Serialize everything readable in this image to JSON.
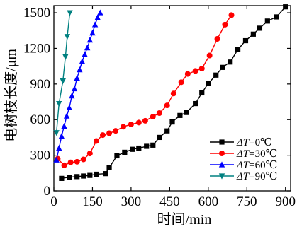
{
  "chart_data": {
    "type": "line",
    "xlabel": "时间/min",
    "ylabel": "电树枝长度/μm",
    "xlim": [
      0,
      920
    ],
    "ylim": [
      0,
      1560
    ],
    "xticks": [
      0,
      150,
      300,
      450,
      600,
      750,
      900
    ],
    "yticks": [
      0,
      300,
      600,
      900,
      1200,
      1500
    ],
    "legend_position": "bottom-right",
    "grid": false,
    "series": [
      {
        "name": "ΔT=0℃",
        "prefix": "ΔT",
        "suffix": "=0℃",
        "color": "#000000",
        "marker": "square",
        "points": [
          [
            30,
            105
          ],
          [
            60,
            115
          ],
          [
            90,
            120
          ],
          [
            115,
            125
          ],
          [
            140,
            130
          ],
          [
            165,
            140
          ],
          [
            200,
            145
          ],
          [
            215,
            195
          ],
          [
            245,
            295
          ],
          [
            275,
            325
          ],
          [
            305,
            350
          ],
          [
            330,
            360
          ],
          [
            360,
            375
          ],
          [
            385,
            385
          ],
          [
            410,
            450
          ],
          [
            440,
            505
          ],
          [
            460,
            580
          ],
          [
            490,
            635
          ],
          [
            515,
            660
          ],
          [
            550,
            735
          ],
          [
            575,
            825
          ],
          [
            600,
            905
          ],
          [
            630,
            975
          ],
          [
            655,
            1040
          ],
          [
            685,
            1085
          ],
          [
            715,
            1190
          ],
          [
            745,
            1265
          ],
          [
            775,
            1320
          ],
          [
            800,
            1370
          ],
          [
            830,
            1430
          ],
          [
            865,
            1465
          ],
          [
            900,
            1550
          ]
        ]
      },
      {
        "name": "ΔT=30℃",
        "prefix": "ΔT",
        "suffix": "=30℃",
        "color": "#ff0000",
        "marker": "circle",
        "points": [
          [
            15,
            270
          ],
          [
            40,
            215
          ],
          [
            65,
            240
          ],
          [
            90,
            245
          ],
          [
            115,
            265
          ],
          [
            140,
            315
          ],
          [
            165,
            420
          ],
          [
            190,
            470
          ],
          [
            215,
            485
          ],
          [
            240,
            505
          ],
          [
            270,
            540
          ],
          [
            300,
            560
          ],
          [
            330,
            575
          ],
          [
            355,
            590
          ],
          [
            385,
            625
          ],
          [
            410,
            655
          ],
          [
            440,
            720
          ],
          [
            465,
            820
          ],
          [
            495,
            915
          ],
          [
            520,
            985
          ],
          [
            550,
            1010
          ],
          [
            575,
            1030
          ],
          [
            605,
            1140
          ],
          [
            635,
            1280
          ],
          [
            665,
            1400
          ],
          [
            690,
            1480
          ]
        ]
      },
      {
        "name": "ΔT=60℃",
        "prefix": "ΔT",
        "suffix": "=60℃",
        "color": "#0000ff",
        "marker": "triangle-up",
        "points": [
          [
            10,
            260
          ],
          [
            20,
            360
          ],
          [
            30,
            460
          ],
          [
            40,
            545
          ],
          [
            50,
            630
          ],
          [
            60,
            700
          ],
          [
            70,
            800
          ],
          [
            80,
            860
          ],
          [
            90,
            950
          ],
          [
            100,
            1020
          ],
          [
            110,
            1090
          ],
          [
            120,
            1150
          ],
          [
            130,
            1205
          ],
          [
            140,
            1270
          ],
          [
            150,
            1330
          ],
          [
            160,
            1400
          ],
          [
            170,
            1460
          ],
          [
            180,
            1500
          ]
        ]
      },
      {
        "name": "ΔT=90℃",
        "prefix": "ΔT",
        "suffix": "=90℃",
        "color": "#008080",
        "marker": "triangle-down",
        "points": [
          [
            10,
            490
          ],
          [
            20,
            735
          ],
          [
            35,
            925
          ],
          [
            45,
            1130
          ],
          [
            52,
            1300
          ],
          [
            62,
            1500
          ]
        ]
      }
    ]
  }
}
